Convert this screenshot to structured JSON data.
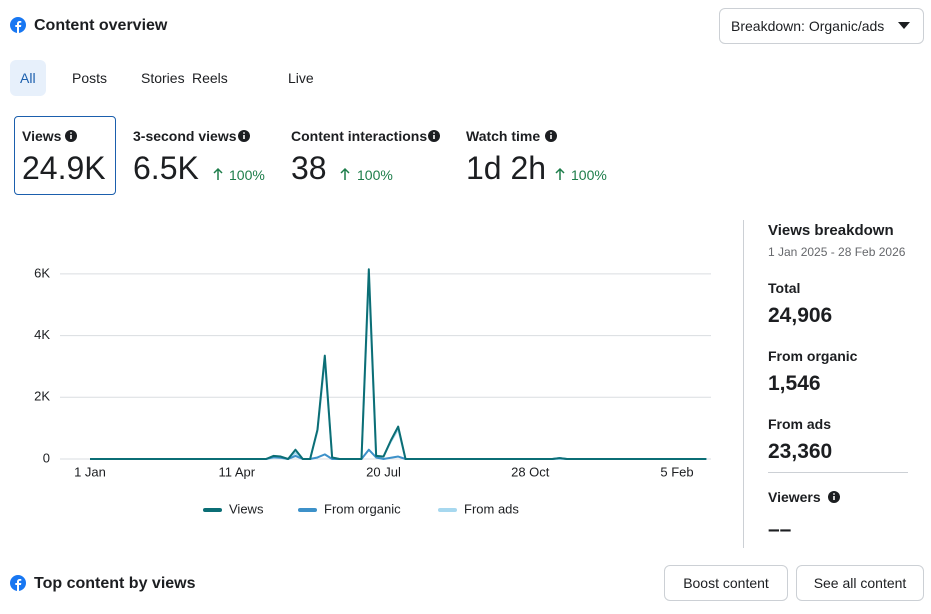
{
  "header": {
    "title": "Content overview",
    "dropdown": "Breakdown: Organic/ads"
  },
  "tabs": [
    "All",
    "Posts",
    "Stories",
    "Reels",
    "Live"
  ],
  "metrics": [
    {
      "label": "Views",
      "value": "24.9K"
    },
    {
      "label": "3-second views",
      "value": "6.5K",
      "change": "100%"
    },
    {
      "label": "Content interactions",
      "value": "38",
      "change": "100%"
    },
    {
      "label": "Watch time",
      "value": "1d 2h",
      "change": "100%"
    }
  ],
  "breakdown": {
    "title": "Views breakdown",
    "date_range": "1 Jan 2025 - 28 Feb 2026",
    "items": [
      {
        "label": "Total",
        "value": "24,906"
      },
      {
        "label": "From organic",
        "value": "1,546"
      },
      {
        "label": "From ads",
        "value": "23,360"
      }
    ],
    "viewers_label": "Viewers",
    "viewers_value": "––"
  },
  "footer": {
    "title": "Top content by views",
    "buttons": [
      "Boost content",
      "See all content"
    ]
  },
  "chart_data": {
    "type": "line",
    "categories": [
      "1 Jan",
      null,
      null,
      null,
      null,
      null,
      null,
      null,
      null,
      null,
      null,
      null,
      null,
      null,
      null,
      null,
      null,
      null,
      null,
      null,
      "11 Apr",
      null,
      null,
      null,
      null,
      null,
      null,
      null,
      null,
      null,
      null,
      null,
      null,
      null,
      null,
      null,
      null,
      null,
      null,
      null,
      "20 Jul",
      null,
      null,
      null,
      null,
      null,
      null,
      null,
      null,
      null,
      null,
      null,
      null,
      null,
      null,
      null,
      null,
      null,
      null,
      null,
      "28 Oct",
      null,
      null,
      null,
      null,
      null,
      null,
      null,
      null,
      null,
      null,
      null,
      null,
      null,
      null,
      null,
      null,
      null,
      null,
      null,
      "5 Feb",
      null,
      null,
      null,
      null
    ],
    "series": [
      {
        "name": "Views",
        "color": "#0b6e75",
        "values": [
          0,
          0,
          0,
          0,
          0,
          0,
          0,
          0,
          0,
          0,
          0,
          0,
          0,
          0,
          0,
          0,
          0,
          0,
          0,
          0,
          0,
          0,
          0,
          0,
          0,
          100,
          80,
          0,
          300,
          0,
          0,
          950,
          3350,
          50,
          0,
          0,
          0,
          0,
          6150,
          100,
          80,
          600,
          1050,
          0,
          0,
          0,
          0,
          0,
          0,
          0,
          0,
          0,
          0,
          0,
          0,
          0,
          0,
          0,
          0,
          0,
          0,
          0,
          0,
          0,
          30,
          0,
          0,
          0,
          0,
          0,
          0,
          0,
          0,
          0,
          0,
          0,
          0,
          0,
          0,
          0,
          0,
          0,
          0,
          0,
          0
        ]
      },
      {
        "name": "From organic",
        "color": "#3d91c9",
        "values": [
          0,
          0,
          0,
          0,
          0,
          0,
          0,
          0,
          0,
          0,
          0,
          0,
          0,
          0,
          0,
          0,
          0,
          0,
          0,
          0,
          0,
          0,
          0,
          0,
          0,
          60,
          40,
          0,
          100,
          0,
          0,
          50,
          150,
          0,
          0,
          0,
          0,
          0,
          300,
          50,
          0,
          40,
          80,
          0,
          0,
          0,
          0,
          0,
          0,
          0,
          0,
          0,
          0,
          0,
          0,
          0,
          0,
          0,
          0,
          0,
          0,
          0,
          0,
          0,
          30,
          0,
          0,
          0,
          0,
          0,
          0,
          0,
          0,
          0,
          0,
          0,
          0,
          0,
          0,
          0,
          0,
          0,
          0,
          0,
          0
        ]
      },
      {
        "name": "From ads",
        "color": "#a7d8ef",
        "values": [
          0,
          0,
          0,
          0,
          0,
          0,
          0,
          0,
          0,
          0,
          0,
          0,
          0,
          0,
          0,
          0,
          0,
          0,
          0,
          0,
          0,
          0,
          0,
          0,
          0,
          40,
          40,
          0,
          200,
          0,
          0,
          900,
          3200,
          50,
          0,
          0,
          0,
          0,
          5850,
          50,
          80,
          560,
          970,
          0,
          0,
          0,
          0,
          0,
          0,
          0,
          0,
          0,
          0,
          0,
          0,
          0,
          0,
          0,
          0,
          0,
          0,
          0,
          0,
          0,
          0,
          0,
          0,
          0,
          0,
          0,
          0,
          0,
          0,
          0,
          0,
          0,
          0,
          0,
          0,
          0,
          0,
          0,
          0,
          0,
          0
        ]
      }
    ],
    "ylim": [
      0,
      7000
    ],
    "yticks": [
      0,
      {
        "value": 2000,
        "label": "2K"
      },
      {
        "value": 4000,
        "label": "4K"
      },
      {
        "value": 6000,
        "label": "6K"
      }
    ],
    "grid": true
  }
}
